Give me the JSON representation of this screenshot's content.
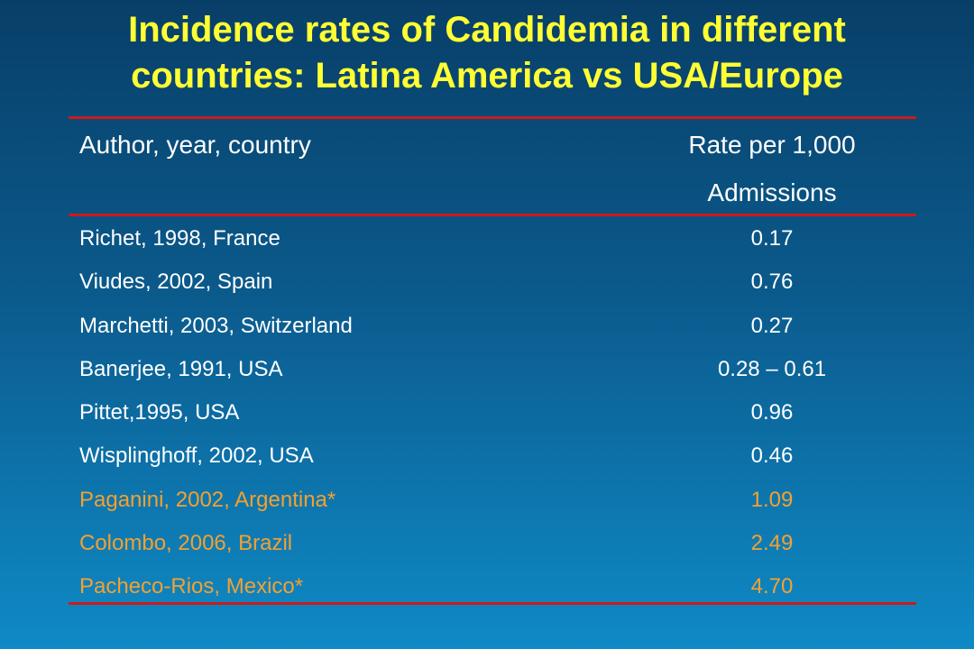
{
  "title_line1": "Incidence rates of Candidemia in different",
  "title_line2": "countries: Latina America vs USA/Europe",
  "header": {
    "author": "Author, year, country",
    "rate_line1": "Rate per 1,000",
    "rate_line2": "Admissions"
  },
  "rows": [
    {
      "author": "Richet, 1998, France",
      "rate": "0.17",
      "group": "usa-europe"
    },
    {
      "author": "Viudes, 2002, Spain",
      "rate": "0.76",
      "group": "usa-europe"
    },
    {
      "author": "Marchetti, 2003, Switzerland",
      "rate": "0.27",
      "group": "usa-europe"
    },
    {
      "author": "Banerjee, 1991, USA",
      "rate": "0.28 – 0.61",
      "group": "usa-europe"
    },
    {
      "author": "Pittet,1995, USA",
      "rate": "0.96",
      "group": "usa-europe"
    },
    {
      "author": "Wisplinghoff, 2002, USA",
      "rate": "0.46",
      "group": "usa-europe"
    },
    {
      "author": "Paganini, 2002, Argentina*",
      "rate": "1.09",
      "group": "latin-america"
    },
    {
      "author": "Colombo, 2006, Brazil",
      "rate": "2.49",
      "group": "latin-america"
    },
    {
      "author": "Pacheco-Rios, Mexico*",
      "rate": "4.70",
      "group": "latin-america"
    }
  ],
  "colors": {
    "title": "#ffff33",
    "rule": "#cc1a1a",
    "text": "#ffffff",
    "highlight": "#f4a030"
  }
}
